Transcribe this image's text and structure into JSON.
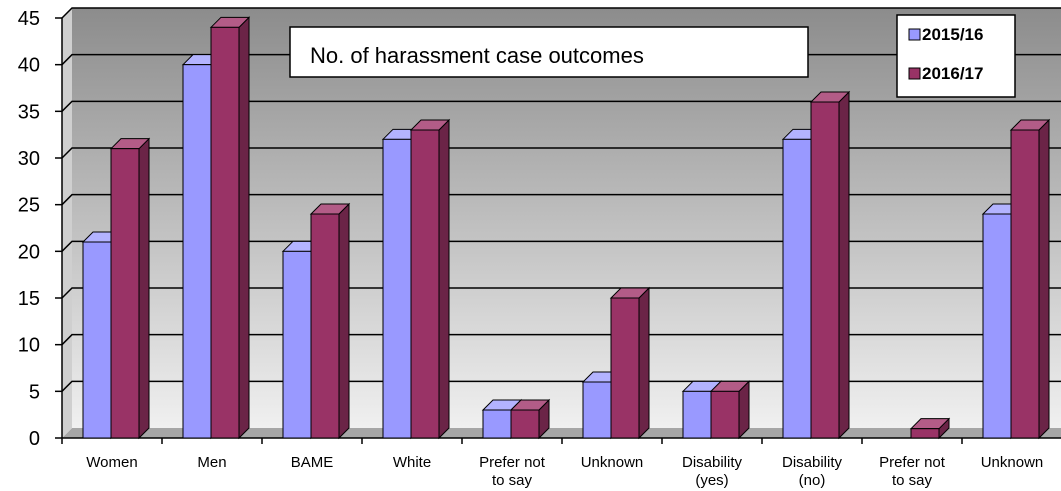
{
  "chart_data": {
    "type": "bar",
    "title": "No. of harassment case outcomes",
    "xlabel": "",
    "ylabel": "",
    "ylim": [
      0,
      45
    ],
    "yticks": [
      "0",
      "5",
      "10",
      "15",
      "20",
      "25",
      "30",
      "35",
      "40",
      "45"
    ],
    "categories": [
      [
        "Women"
      ],
      [
        "Men"
      ],
      [
        "BAME"
      ],
      [
        "White"
      ],
      [
        "Prefer not",
        "to say"
      ],
      [
        "Unknown"
      ],
      [
        "Disability",
        "(yes)"
      ],
      [
        "Disability",
        "(no)"
      ],
      [
        "Prefer not",
        "to say"
      ],
      [
        "Unknown"
      ]
    ],
    "series": [
      {
        "name": "2015/16",
        "values": [
          21,
          40,
          20,
          32,
          3,
          6,
          5,
          32,
          0,
          24
        ]
      },
      {
        "name": "2016/17",
        "values": [
          31,
          44,
          24,
          33,
          3,
          15,
          5,
          36,
          1,
          33
        ]
      }
    ],
    "grid": true,
    "legend_position": "top-right",
    "colors": {
      "series": [
        "#9999ff",
        "#993366"
      ],
      "series_top": [
        "#b3b3ff",
        "#b35c87"
      ],
      "series_side": [
        "#6b6bb3",
        "#6b2447"
      ],
      "plot_bg_top": "#8c8c8c",
      "plot_bg_bottom": "#f0f0f0"
    }
  }
}
